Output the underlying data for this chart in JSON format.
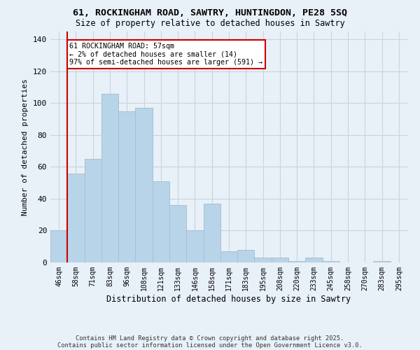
{
  "title_line1": "61, ROCKINGHAM ROAD, SAWTRY, HUNTINGDON, PE28 5SQ",
  "title_line2": "Size of property relative to detached houses in Sawtry",
  "xlabel": "Distribution of detached houses by size in Sawtry",
  "ylabel": "Number of detached properties",
  "categories": [
    "46sqm",
    "58sqm",
    "71sqm",
    "83sqm",
    "96sqm",
    "108sqm",
    "121sqm",
    "133sqm",
    "146sqm",
    "158sqm",
    "171sqm",
    "183sqm",
    "195sqm",
    "208sqm",
    "220sqm",
    "233sqm",
    "245sqm",
    "258sqm",
    "270sqm",
    "283sqm",
    "295sqm"
  ],
  "values": [
    20,
    56,
    65,
    106,
    95,
    97,
    51,
    36,
    20,
    37,
    7,
    8,
    3,
    3,
    1,
    3,
    1,
    0,
    0,
    1,
    0
  ],
  "bar_color": "#b8d4e8",
  "bar_edge_color": "#aabfd0",
  "annotation_box_text": "61 ROCKINGHAM ROAD: 57sqm\n← 2% of detached houses are smaller (14)\n97% of semi-detached houses are larger (591) →",
  "annotation_box_color": "#ffffff",
  "annotation_box_edge_color": "#cc0000",
  "vline_color": "#cc0000",
  "vline_x_index": 1,
  "ylim": [
    0,
    145
  ],
  "yticks": [
    0,
    20,
    40,
    60,
    80,
    100,
    120,
    140
  ],
  "grid_color": "#c8d4de",
  "background_color": "#e8f0f8",
  "footer_line1": "Contains HM Land Registry data © Crown copyright and database right 2025.",
  "footer_line2": "Contains public sector information licensed under the Open Government Licence v3.0."
}
